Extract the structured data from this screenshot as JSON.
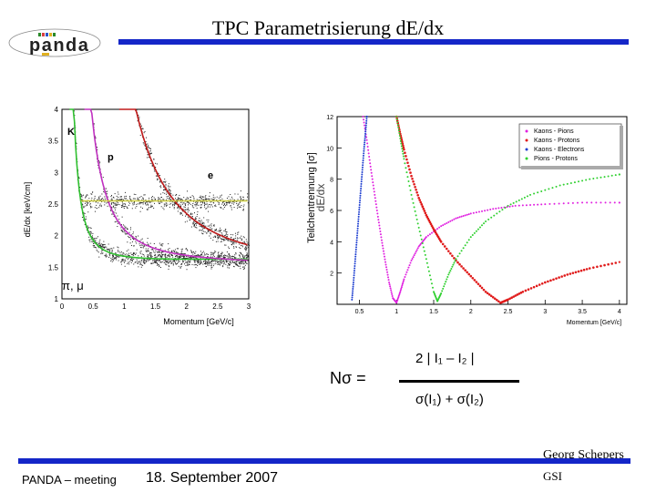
{
  "slide": {
    "title": "TPC Parametrisierung dE/dx",
    "logo_text": "panda",
    "footer_left": "PANDA – meeting",
    "footer_date": "18. September 2007",
    "author": "Georg Schepers",
    "institute": "GSI"
  },
  "equation": {
    "lhs": "Nσ  =",
    "numerator": "2 | I₁ – I₂ |",
    "denominator": "σ(I₁) + σ(I₂)"
  },
  "colors": {
    "bar": "#1426c8",
    "kaons_pions": "#e020e0",
    "kaons_protons": "#e01a1a",
    "kaons_electrons": "#2040d0",
    "pions_protons": "#30d030"
  },
  "left_plot": {
    "ylabel": "dE/dx [keV/cm]",
    "xlabel": "Momentum [GeV/c]",
    "x_ticks": [
      "0",
      "0.5",
      "1",
      "1.5",
      "2",
      "2.5",
      "3"
    ],
    "y_ticks": [
      "1",
      "1.5",
      "2",
      "2.5",
      "3",
      "3.5",
      "4"
    ],
    "labels": {
      "kaon": "K",
      "proton": "p",
      "electron": "e",
      "pion_muon": "π, μ"
    }
  },
  "chart_data": {
    "type": "line",
    "ylabel_main": "Teilchentrennung [σ]",
    "ylabel_overlay": "dE/dx",
    "xlabel": "Momentum [GeV/c]",
    "xlim": [
      0.2,
      4.1
    ],
    "ylim": [
      0,
      12
    ],
    "x_ticks": [
      "0.5",
      "1",
      "1.5",
      "2",
      "2.5",
      "3",
      "3.5",
      "4"
    ],
    "y_ticks": [
      "2",
      "4",
      "6",
      "8",
      "10",
      "12"
    ],
    "legend_position": "top-right",
    "series": [
      {
        "name": "Kaons - Pions",
        "color": "#e020e0",
        "x": [
          0.55,
          0.6,
          0.65,
          0.7,
          0.75,
          0.8,
          0.85,
          0.9,
          0.95,
          1.0,
          1.05,
          1.1,
          1.2,
          1.3,
          1.4,
          1.6,
          1.8,
          2.0,
          2.3,
          2.6,
          3.0,
          3.5,
          4.0
        ],
        "y": [
          12,
          10.5,
          8.8,
          7.2,
          5.6,
          4.1,
          2.7,
          1.4,
          0.4,
          0.1,
          0.8,
          1.6,
          2.8,
          3.7,
          4.3,
          5.0,
          5.5,
          5.8,
          6.1,
          6.3,
          6.4,
          6.5,
          6.5
        ]
      },
      {
        "name": "Kaons - Protons",
        "color": "#e01a1a",
        "x": [
          1.0,
          1.05,
          1.1,
          1.2,
          1.3,
          1.4,
          1.5,
          1.6,
          1.8,
          2.0,
          2.2,
          2.4,
          2.5,
          2.7,
          3.0,
          3.3,
          3.6,
          4.0
        ],
        "y": [
          12,
          10.9,
          9.9,
          8.2,
          6.8,
          5.7,
          4.8,
          4.0,
          2.8,
          1.8,
          0.8,
          0.1,
          0.3,
          0.8,
          1.4,
          1.9,
          2.3,
          2.7
        ]
      },
      {
        "name": "Kaons - Electrons",
        "color": "#2040d0",
        "x": [
          0.4,
          0.42,
          0.44,
          0.46,
          0.48,
          0.5,
          0.52,
          0.54,
          0.56,
          0.58,
          0.6
        ],
        "y": [
          0.3,
          1.4,
          2.6,
          3.8,
          5.0,
          6.2,
          7.4,
          8.6,
          9.8,
          10.9,
          12
        ]
      },
      {
        "name": "Pions - Protons",
        "color": "#30d030",
        "x": [
          1.0,
          1.05,
          1.1,
          1.2,
          1.3,
          1.4,
          1.5,
          1.55,
          1.6,
          1.7,
          1.8,
          2.0,
          2.2,
          2.5,
          2.8,
          3.2,
          3.6,
          4.0
        ],
        "y": [
          12,
          10.6,
          9.3,
          7.0,
          4.9,
          2.9,
          0.8,
          0.2,
          0.7,
          1.9,
          2.9,
          4.3,
          5.3,
          6.3,
          7.0,
          7.6,
          8.0,
          8.3
        ]
      }
    ]
  }
}
